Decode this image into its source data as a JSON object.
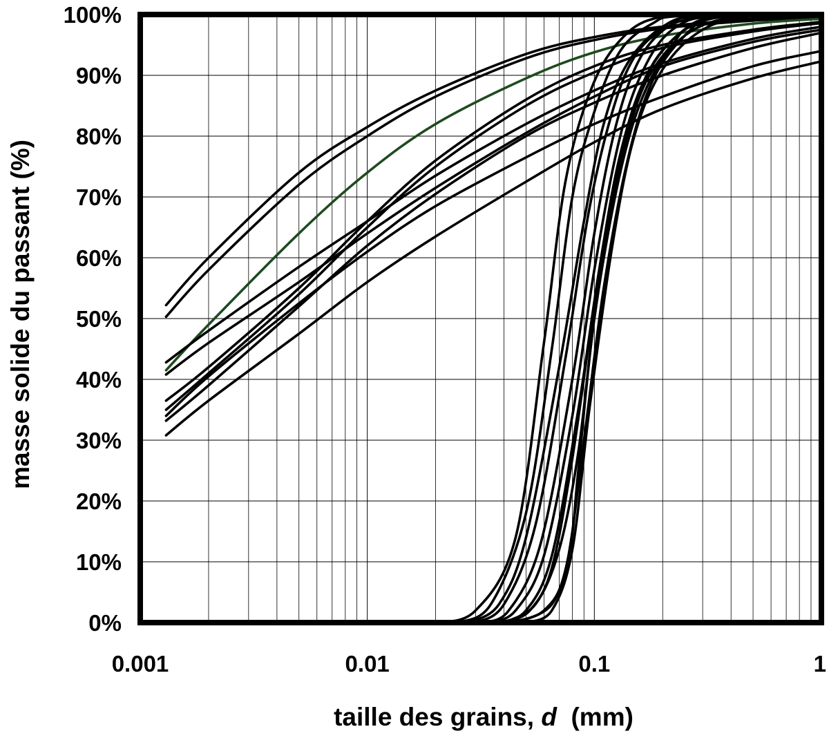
{
  "chart_data": {
    "type": "line",
    "xlabel": {
      "prefix": "taille des grains, ",
      "variable": "d",
      "suffix": "  (mm)"
    },
    "ylabel": "masse solide du passant (%)",
    "x_scale": "log",
    "xlim": [
      0.001,
      1
    ],
    "ylim": [
      0,
      100
    ],
    "x_ticks": [
      0.001,
      0.01,
      0.1,
      1
    ],
    "x_tick_labels": [
      "0.001",
      "0.01",
      "0.1",
      "1"
    ],
    "y_ticks": [
      0,
      10,
      20,
      30,
      40,
      50,
      60,
      70,
      80,
      90,
      100
    ],
    "y_tick_labels": [
      "0%",
      "10%",
      "20%",
      "30%",
      "40%",
      "50%",
      "60%",
      "70%",
      "80%",
      "90%",
      "100%"
    ],
    "grid": true,
    "legend": "none",
    "line_color": "#000000",
    "highlight_color": "#1f4a1f",
    "series": [
      {
        "values": [
          [
            0.0013,
            52.2
          ],
          [
            0.002,
            60
          ],
          [
            0.005,
            74
          ],
          [
            0.01,
            81.5
          ],
          [
            0.02,
            87.5
          ],
          [
            0.05,
            93.5
          ],
          [
            0.1,
            96.3
          ],
          [
            0.2,
            98
          ],
          [
            0.5,
            99.2
          ],
          [
            1,
            99.6
          ]
        ]
      },
      {
        "values": [
          [
            0.0013,
            50.3
          ],
          [
            0.002,
            58
          ],
          [
            0.005,
            72
          ],
          [
            0.01,
            80
          ],
          [
            0.02,
            86.5
          ],
          [
            0.05,
            92.8
          ],
          [
            0.1,
            95.8
          ],
          [
            0.2,
            97.7
          ],
          [
            0.5,
            99
          ],
          [
            1,
            99.5
          ]
        ]
      },
      {
        "values": [
          [
            0.0013,
            41.5
          ],
          [
            0.002,
            49
          ],
          [
            0.005,
            64
          ],
          [
            0.01,
            74
          ],
          [
            0.02,
            82
          ],
          [
            0.05,
            89.5
          ],
          [
            0.1,
            93.8
          ],
          [
            0.2,
            96.5
          ],
          [
            0.5,
            98.5
          ],
          [
            1,
            99.3
          ]
        ],
        "highlight": true
      },
      {
        "values": [
          [
            0.0013,
            42.8
          ],
          [
            0.002,
            48
          ],
          [
            0.005,
            58.5
          ],
          [
            0.01,
            66
          ],
          [
            0.02,
            73.5
          ],
          [
            0.05,
            82
          ],
          [
            0.1,
            87.5
          ],
          [
            0.2,
            92
          ],
          [
            0.5,
            96
          ],
          [
            1,
            98
          ]
        ]
      },
      {
        "values": [
          [
            0.0013,
            40.8
          ],
          [
            0.002,
            46
          ],
          [
            0.005,
            56
          ],
          [
            0.01,
            64
          ],
          [
            0.02,
            71.5
          ],
          [
            0.05,
            80.5
          ],
          [
            0.1,
            86.5
          ],
          [
            0.2,
            91.5
          ],
          [
            0.5,
            95.5
          ],
          [
            1,
            97.5
          ]
        ]
      },
      {
        "values": [
          [
            0.0013,
            36.5
          ],
          [
            0.002,
            42
          ],
          [
            0.005,
            55
          ],
          [
            0.01,
            66
          ],
          [
            0.02,
            76
          ],
          [
            0.05,
            86
          ],
          [
            0.1,
            91.5
          ],
          [
            0.2,
            95
          ],
          [
            0.5,
            97.5
          ],
          [
            1,
            98.8
          ]
        ]
      },
      {
        "values": [
          [
            0.0013,
            35
          ],
          [
            0.002,
            41
          ],
          [
            0.005,
            54
          ],
          [
            0.01,
            65
          ],
          [
            0.02,
            75
          ],
          [
            0.05,
            85
          ],
          [
            0.1,
            90.5
          ],
          [
            0.2,
            94.5
          ],
          [
            0.5,
            97.2
          ],
          [
            1,
            98.6
          ]
        ]
      },
      {
        "values": [
          [
            0.0013,
            34
          ],
          [
            0.002,
            40.5
          ],
          [
            0.005,
            52.5
          ],
          [
            0.01,
            61
          ],
          [
            0.02,
            68.5
          ],
          [
            0.05,
            76.5
          ],
          [
            0.1,
            82
          ],
          [
            0.2,
            86.5
          ],
          [
            0.5,
            91.5
          ],
          [
            1,
            94
          ]
        ]
      },
      {
        "values": [
          [
            0.0013,
            33.2
          ],
          [
            0.002,
            39
          ],
          [
            0.005,
            52
          ],
          [
            0.01,
            62
          ],
          [
            0.02,
            70.5
          ],
          [
            0.05,
            80
          ],
          [
            0.1,
            85.5
          ],
          [
            0.2,
            90
          ],
          [
            0.5,
            94.5
          ],
          [
            1,
            97
          ]
        ]
      },
      {
        "values": [
          [
            0.0013,
            30.8
          ],
          [
            0.002,
            36.5
          ],
          [
            0.005,
            47.5
          ],
          [
            0.01,
            56
          ],
          [
            0.02,
            63.5
          ],
          [
            0.05,
            72.5
          ],
          [
            0.1,
            79
          ],
          [
            0.2,
            84.5
          ],
          [
            0.5,
            89.5
          ],
          [
            1,
            92.3
          ]
        ]
      },
      {
        "values": [
          [
            0.02,
            0
          ],
          [
            0.03,
            2
          ],
          [
            0.045,
            14
          ],
          [
            0.06,
            46
          ],
          [
            0.075,
            73
          ],
          [
            0.1,
            89
          ],
          [
            0.14,
            97
          ],
          [
            0.2,
            99.7
          ],
          [
            0.3,
            100
          ],
          [
            1,
            100
          ]
        ]
      },
      {
        "values": [
          [
            0.025,
            0
          ],
          [
            0.035,
            3
          ],
          [
            0.05,
            18
          ],
          [
            0.065,
            45
          ],
          [
            0.08,
            70
          ],
          [
            0.1,
            84
          ],
          [
            0.13,
            94
          ],
          [
            0.18,
            98.5
          ],
          [
            0.25,
            99.8
          ],
          [
            1,
            100
          ]
        ]
      },
      {
        "values": [
          [
            0.028,
            0
          ],
          [
            0.038,
            3
          ],
          [
            0.05,
            14
          ],
          [
            0.07,
            42
          ],
          [
            0.09,
            66
          ],
          [
            0.11,
            82
          ],
          [
            0.14,
            92
          ],
          [
            0.2,
            98
          ],
          [
            0.3,
            99.8
          ],
          [
            1,
            100
          ]
        ]
      },
      {
        "values": [
          [
            0.03,
            0
          ],
          [
            0.04,
            3
          ],
          [
            0.055,
            16
          ],
          [
            0.075,
            44
          ],
          [
            0.095,
            68
          ],
          [
            0.12,
            84
          ],
          [
            0.15,
            93
          ],
          [
            0.2,
            97.5
          ],
          [
            0.3,
            99.5
          ],
          [
            1,
            100
          ]
        ]
      },
      {
        "values": [
          [
            0.032,
            0
          ],
          [
            0.042,
            2
          ],
          [
            0.058,
            13
          ],
          [
            0.08,
            40
          ],
          [
            0.1,
            64
          ],
          [
            0.125,
            82
          ],
          [
            0.16,
            93
          ],
          [
            0.22,
            98.5
          ],
          [
            0.3,
            99.8
          ],
          [
            1,
            100
          ]
        ]
      },
      {
        "values": [
          [
            0.035,
            0
          ],
          [
            0.045,
            2
          ],
          [
            0.06,
            11
          ],
          [
            0.08,
            34
          ],
          [
            0.1,
            58
          ],
          [
            0.13,
            80
          ],
          [
            0.17,
            92
          ],
          [
            0.23,
            98
          ],
          [
            0.35,
            99.8
          ],
          [
            1,
            100
          ]
        ]
      },
      {
        "values": [
          [
            0.038,
            0
          ],
          [
            0.05,
            2
          ],
          [
            0.065,
            11
          ],
          [
            0.085,
            35
          ],
          [
            0.105,
            58
          ],
          [
            0.13,
            77
          ],
          [
            0.17,
            90
          ],
          [
            0.25,
            97.5
          ],
          [
            0.4,
            99.8
          ],
          [
            1,
            100
          ]
        ]
      },
      {
        "values": [
          [
            0.04,
            0
          ],
          [
            0.055,
            3
          ],
          [
            0.07,
            12
          ],
          [
            0.085,
            28
          ],
          [
            0.1,
            50
          ],
          [
            0.125,
            72
          ],
          [
            0.16,
            87
          ],
          [
            0.22,
            95
          ],
          [
            0.3,
            98.5
          ],
          [
            1,
            100
          ]
        ]
      },
      {
        "values": [
          [
            0.042,
            0
          ],
          [
            0.06,
            2
          ],
          [
            0.075,
            9
          ],
          [
            0.09,
            30
          ],
          [
            0.11,
            55
          ],
          [
            0.14,
            76
          ],
          [
            0.18,
            89
          ],
          [
            0.25,
            96.5
          ],
          [
            0.35,
            99.5
          ],
          [
            1,
            100
          ]
        ]
      },
      {
        "values": [
          [
            0.045,
            0
          ],
          [
            0.065,
            3
          ],
          [
            0.078,
            12
          ],
          [
            0.085,
            25
          ],
          [
            0.1,
            50
          ],
          [
            0.13,
            74
          ],
          [
            0.17,
            88
          ],
          [
            0.24,
            96
          ],
          [
            0.4,
            99.5
          ],
          [
            1,
            100
          ]
        ]
      },
      {
        "values": [
          [
            0.05,
            0
          ],
          [
            0.065,
            2
          ],
          [
            0.08,
            12
          ],
          [
            0.095,
            35
          ],
          [
            0.12,
            62
          ],
          [
            0.15,
            80
          ],
          [
            0.2,
            91
          ],
          [
            0.3,
            97.5
          ],
          [
            0.5,
            99.8
          ],
          [
            1,
            100
          ]
        ]
      },
      {
        "values": [
          [
            0.04,
            0
          ],
          [
            0.052,
            2
          ],
          [
            0.065,
            9
          ],
          [
            0.08,
            27
          ],
          [
            0.1,
            52
          ],
          [
            0.13,
            76
          ],
          [
            0.17,
            90
          ],
          [
            0.24,
            97
          ],
          [
            0.35,
            99.6
          ],
          [
            1,
            100
          ]
        ]
      }
    ]
  }
}
